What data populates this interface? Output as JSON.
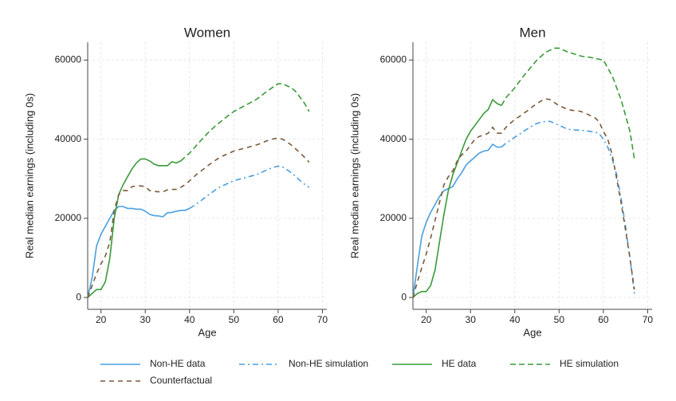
{
  "chart_data": [
    {
      "type": "line",
      "title": "Women",
      "xlabel": "Age",
      "ylabel": "Real median earnings (including 0s)",
      "xlim": [
        17,
        71
      ],
      "ylim": [
        -3000,
        64500
      ],
      "xticks": [
        20,
        30,
        40,
        50,
        60,
        70
      ],
      "yticks": [
        0,
        20000,
        40000,
        60000
      ],
      "grid": true,
      "x": [
        17,
        18,
        19,
        20,
        21,
        22,
        23,
        24,
        25,
        26,
        27,
        28,
        29,
        30,
        31,
        32,
        33,
        34,
        35,
        36,
        37,
        38,
        39,
        40,
        41,
        42,
        43,
        44,
        45,
        46,
        47,
        48,
        49,
        50,
        51,
        52,
        53,
        54,
        55,
        56,
        57,
        58,
        59,
        60,
        61,
        62,
        63,
        64,
        65,
        66,
        67
      ],
      "series": [
        {
          "name": "Non-HE data",
          "color": "#4a9fe0",
          "style": "solid",
          "values": [
            0,
            5000,
            13000,
            16000,
            18000,
            20000,
            22000,
            23000,
            23000,
            22500,
            22500,
            22300,
            22300,
            21800,
            21000,
            20700,
            20600,
            20400,
            21400,
            21500,
            21800,
            22000,
            22000,
            22500,
            null,
            null,
            null,
            null,
            null,
            null,
            null,
            null,
            null,
            null,
            null,
            null,
            null,
            null,
            null,
            null,
            null,
            null,
            null,
            null,
            null,
            null,
            null,
            null,
            null,
            null,
            null
          ]
        },
        {
          "name": "Non-HE simulation",
          "color": "#4a9fe0",
          "style": "dashdot",
          "values": [
            null,
            null,
            null,
            null,
            null,
            null,
            null,
            null,
            null,
            null,
            null,
            null,
            null,
            null,
            null,
            null,
            null,
            null,
            null,
            null,
            null,
            null,
            null,
            22500,
            23200,
            24000,
            24800,
            25700,
            26500,
            27300,
            28000,
            28500,
            29000,
            29500,
            29800,
            30100,
            30400,
            30700,
            31000,
            31500,
            32000,
            32500,
            32900,
            33200,
            33000,
            32300,
            31500,
            30500,
            29500,
            28600,
            27800
          ]
        },
        {
          "name": "HE data",
          "color": "#3a9a3a",
          "style": "solid",
          "values": [
            0,
            1000,
            2000,
            2000,
            4000,
            10000,
            20000,
            26000,
            28500,
            30500,
            32500,
            34000,
            35000,
            35000,
            34500,
            33700,
            33300,
            33300,
            33300,
            34300,
            34000,
            34500,
            null,
            null,
            null,
            null,
            null,
            null,
            null,
            null,
            null,
            null,
            null,
            null,
            null,
            null,
            null,
            null,
            null,
            null,
            null,
            null,
            null,
            null,
            null,
            null,
            null,
            null,
            null,
            null,
            null
          ]
        },
        {
          "name": "HE simulation",
          "color": "#3a9a3a",
          "style": "dashed",
          "values": [
            null,
            null,
            null,
            null,
            null,
            null,
            null,
            null,
            null,
            null,
            null,
            null,
            null,
            null,
            null,
            null,
            null,
            null,
            null,
            null,
            null,
            34500,
            35500,
            36500,
            37700,
            39000,
            40200,
            41400,
            42500,
            43500,
            44400,
            45300,
            46200,
            47000,
            47600,
            48200,
            48800,
            49400,
            50000,
            50800,
            51700,
            52500,
            53300,
            54000,
            54000,
            53500,
            53000,
            52000,
            50500,
            49000,
            47000
          ]
        },
        {
          "name": "Counterfactual",
          "color": "#7a5a3a",
          "style": "longdash",
          "values": [
            0,
            3000,
            6000,
            8500,
            10500,
            14000,
            22000,
            26000,
            27000,
            27000,
            28000,
            28200,
            28200,
            28000,
            27000,
            26800,
            26700,
            26700,
            27200,
            27300,
            27300,
            27800,
            28500,
            29500,
            30500,
            31500,
            32300,
            33200,
            34000,
            34800,
            35500,
            36000,
            36500,
            37000,
            37300,
            37600,
            37900,
            38200,
            38500,
            38900,
            39400,
            39800,
            40100,
            40300,
            40000,
            39300,
            38500,
            37500,
            36500,
            35400,
            34200
          ]
        }
      ]
    },
    {
      "type": "line",
      "title": "Men",
      "xlabel": "Age",
      "ylabel": "Real median earnings (including 0s)",
      "xlim": [
        17,
        71
      ],
      "ylim": [
        -3000,
        64500
      ],
      "xticks": [
        20,
        30,
        40,
        50,
        60,
        70
      ],
      "yticks": [
        0,
        20000,
        40000,
        60000
      ],
      "grid": true,
      "x": [
        17,
        18,
        19,
        20,
        21,
        22,
        23,
        24,
        25,
        26,
        27,
        28,
        29,
        30,
        31,
        32,
        33,
        34,
        35,
        36,
        37,
        38,
        39,
        40,
        41,
        42,
        43,
        44,
        45,
        46,
        47,
        48,
        49,
        50,
        51,
        52,
        53,
        54,
        55,
        56,
        57,
        58,
        59,
        60,
        61,
        62,
        63,
        64,
        65,
        66,
        67
      ],
      "series": [
        {
          "name": "Non-HE data",
          "color": "#4a9fe0",
          "style": "solid",
          "values": [
            0,
            8000,
            15500,
            19000,
            21500,
            23500,
            25500,
            27000,
            27500,
            28000,
            30000,
            31500,
            33500,
            34500,
            35500,
            36500,
            37000,
            37200,
            38700,
            38000,
            38000,
            null,
            null,
            null,
            null,
            null,
            null,
            null,
            null,
            null,
            null,
            null,
            null,
            null,
            null,
            null,
            null,
            null,
            null,
            null,
            null,
            null,
            null,
            null,
            null,
            null,
            null,
            null,
            null,
            null,
            null
          ]
        },
        {
          "name": "Non-HE simulation",
          "color": "#4a9fe0",
          "style": "dashdot",
          "values": [
            null,
            null,
            null,
            null,
            null,
            null,
            null,
            null,
            null,
            null,
            null,
            null,
            null,
            null,
            null,
            null,
            null,
            null,
            null,
            null,
            38000,
            39000,
            39700,
            40500,
            41200,
            42000,
            42700,
            43400,
            44000,
            44300,
            44500,
            44500,
            44000,
            43500,
            43000,
            42500,
            42400,
            42300,
            42300,
            42100,
            42000,
            41800,
            41500,
            40000,
            38000,
            35000,
            31000,
            25000,
            18000,
            10000,
            1000
          ]
        },
        {
          "name": "HE data",
          "color": "#3a9a3a",
          "style": "solid",
          "values": [
            0,
            1000,
            1500,
            1500,
            3000,
            7000,
            14000,
            21000,
            27000,
            31000,
            34000,
            37000,
            40000,
            42000,
            43500,
            45000,
            46500,
            47500,
            50000,
            49000,
            48500,
            null,
            null,
            null,
            null,
            null,
            null,
            null,
            null,
            null,
            null,
            null,
            null,
            null,
            null,
            null,
            null,
            null,
            null,
            null,
            null,
            null,
            null,
            null,
            null,
            null,
            null,
            null,
            null,
            null,
            null
          ]
        },
        {
          "name": "HE simulation",
          "color": "#3a9a3a",
          "style": "dashed",
          "values": [
            null,
            null,
            null,
            null,
            null,
            null,
            null,
            null,
            null,
            null,
            null,
            null,
            null,
            null,
            null,
            null,
            null,
            null,
            null,
            null,
            48500,
            50500,
            51700,
            53000,
            54500,
            56000,
            57300,
            58700,
            60000,
            61000,
            62000,
            62500,
            63000,
            63000,
            62500,
            62000,
            61700,
            61300,
            61000,
            60800,
            60700,
            60500,
            60200,
            60000,
            58000,
            56000,
            53000,
            50000,
            46000,
            42000,
            35000
          ]
        },
        {
          "name": "Counterfactual",
          "color": "#7a5a3a",
          "style": "longdash",
          "values": [
            0,
            4000,
            7500,
            11000,
            15000,
            19500,
            24000,
            28500,
            30500,
            32000,
            34500,
            36000,
            37000,
            38500,
            40000,
            40700,
            41000,
            41500,
            43000,
            41500,
            41500,
            43000,
            44000,
            45000,
            45700,
            46500,
            47300,
            48200,
            49000,
            49700,
            50200,
            50000,
            49200,
            48500,
            48000,
            47500,
            47300,
            47200,
            47000,
            46500,
            46000,
            45500,
            44500,
            42000,
            40000,
            36000,
            30000,
            24000,
            17000,
            10000,
            2000
          ]
        }
      ]
    }
  ]
}
